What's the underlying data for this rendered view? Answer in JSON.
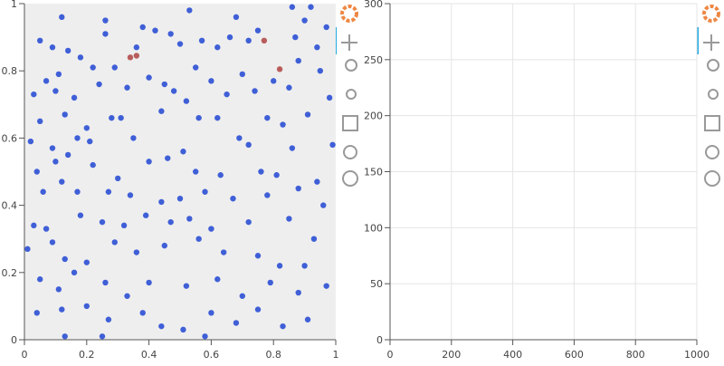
{
  "chart_data": [
    {
      "type": "scatter",
      "background": "#eeeeee",
      "grid": false,
      "xlim": [
        0,
        1
      ],
      "ylim": [
        0,
        1
      ],
      "xticks": [
        0,
        0.2,
        0.4,
        0.6,
        0.8,
        1
      ],
      "yticks": [
        0,
        0.2,
        0.4,
        0.6,
        0.8,
        1
      ],
      "series": [
        {
          "color": "#2b4fd4",
          "x": [
            0.12,
            0.26,
            0.38,
            0.42,
            0.47,
            0.53,
            0.68,
            0.75,
            0.86,
            0.92,
            0.97,
            0.9,
            0.05,
            0.09,
            0.14,
            0.18,
            0.26,
            0.36,
            0.5,
            0.57,
            0.62,
            0.66,
            0.72,
            0.87,
            0.94,
            0.07,
            0.11,
            0.22,
            0.29,
            0.4,
            0.45,
            0.55,
            0.6,
            0.7,
            0.8,
            0.88,
            0.95,
            0.03,
            0.1,
            0.16,
            0.24,
            0.33,
            0.48,
            0.52,
            0.65,
            0.74,
            0.85,
            0.98,
            0.05,
            0.13,
            0.2,
            0.28,
            0.31,
            0.44,
            0.56,
            0.62,
            0.78,
            0.83,
            0.91,
            0.02,
            0.09,
            0.17,
            0.21,
            0.35,
            0.51,
            0.69,
            0.72,
            0.86,
            0.99,
            0.04,
            0.1,
            0.14,
            0.22,
            0.3,
            0.4,
            0.46,
            0.55,
            0.63,
            0.76,
            0.81,
            0.94,
            0.06,
            0.12,
            0.17,
            0.27,
            0.34,
            0.44,
            0.5,
            0.58,
            0.67,
            0.78,
            0.88,
            0.96,
            0.03,
            0.07,
            0.18,
            0.25,
            0.32,
            0.39,
            0.47,
            0.53,
            0.6,
            0.72,
            0.85,
            0.93,
            0.01,
            0.09,
            0.13,
            0.2,
            0.29,
            0.36,
            0.45,
            0.56,
            0.64,
            0.75,
            0.82,
            0.9,
            0.05,
            0.11,
            0.16,
            0.26,
            0.33,
            0.4,
            0.52,
            0.62,
            0.7,
            0.79,
            0.88,
            0.97,
            0.04,
            0.12,
            0.2,
            0.27,
            0.38,
            0.44,
            0.51,
            0.6,
            0.68,
            0.75,
            0.83,
            0.91,
            0.13,
            0.25,
            0.58
          ],
          "values": [
            0.96,
            0.95,
            0.93,
            0.92,
            0.91,
            0.98,
            0.96,
            0.92,
            0.99,
            0.99,
            0.93,
            0.95,
            0.89,
            0.87,
            0.86,
            0.84,
            0.91,
            0.87,
            0.88,
            0.89,
            0.87,
            0.9,
            0.89,
            0.9,
            0.87,
            0.77,
            0.79,
            0.81,
            0.81,
            0.78,
            0.76,
            0.81,
            0.77,
            0.79,
            0.77,
            0.83,
            0.8,
            0.73,
            0.74,
            0.72,
            0.76,
            0.75,
            0.74,
            0.71,
            0.73,
            0.74,
            0.75,
            0.72,
            0.65,
            0.67,
            0.63,
            0.66,
            0.66,
            0.68,
            0.66,
            0.66,
            0.66,
            0.64,
            0.67,
            0.59,
            0.57,
            0.6,
            0.59,
            0.6,
            0.56,
            0.6,
            0.58,
            0.57,
            0.58,
            0.5,
            0.53,
            0.55,
            0.52,
            0.48,
            0.53,
            0.54,
            0.5,
            0.49,
            0.5,
            0.49,
            0.47,
            0.44,
            0.47,
            0.44,
            0.44,
            0.43,
            0.41,
            0.42,
            0.44,
            0.42,
            0.43,
            0.45,
            0.4,
            0.34,
            0.33,
            0.37,
            0.35,
            0.34,
            0.37,
            0.35,
            0.36,
            0.33,
            0.35,
            0.36,
            0.3,
            0.27,
            0.29,
            0.24,
            0.23,
            0.29,
            0.26,
            0.28,
            0.3,
            0.26,
            0.25,
            0.22,
            0.22,
            0.18,
            0.15,
            0.2,
            0.17,
            0.13,
            0.17,
            0.16,
            0.18,
            0.13,
            0.17,
            0.14,
            0.16,
            0.08,
            0.09,
            0.1,
            0.06,
            0.08,
            0.04,
            0.03,
            0.08,
            0.05,
            0.09,
            0.04,
            0.06,
            0.01,
            0.01,
            0.01
          ]
        },
        {
          "color": "#b24b4b",
          "x": [
            0.34,
            0.36,
            0.77,
            0.82
          ],
          "values": [
            0.84,
            0.845,
            0.89,
            0.805
          ]
        }
      ]
    },
    {
      "type": "scatter",
      "background": "#ffffff",
      "grid": true,
      "xlim": [
        0,
        1000
      ],
      "ylim": [
        0,
        300
      ],
      "xticks": [
        0,
        200,
        400,
        600,
        800,
        1000
      ],
      "yticks": [
        0,
        50,
        100,
        150,
        200,
        250,
        300
      ],
      "series": []
    }
  ]
}
